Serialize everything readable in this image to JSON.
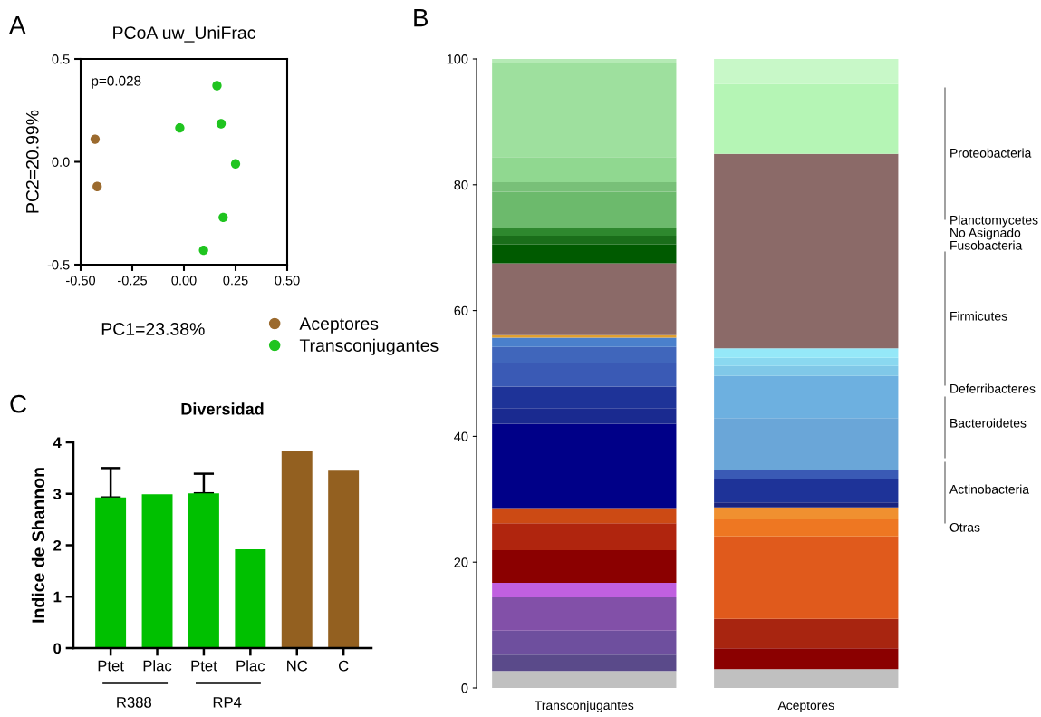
{
  "chart_data": [
    {
      "type": "scatter",
      "title": "PCoA uw_UniFrac",
      "xlabel": "PC1=23.38%",
      "ylabel": "PC2=20.99%",
      "annotations": [
        "A",
        "p=0.028"
      ],
      "marker": "circle",
      "legend": "bottom right",
      "grid": false,
      "xlim": [
        -0.5,
        0.5
      ],
      "xticks": [
        {
          "value": -0.5,
          "label": "-0.50"
        },
        {
          "value": -0.25,
          "label": "-0.25"
        },
        {
          "value": 0,
          "label": "0.00"
        },
        {
          "value": 0.25,
          "label": "0.25"
        },
        {
          "value": 0.5,
          "label": "0.50"
        }
      ],
      "ylim": [
        -0.5,
        0.5
      ],
      "yticks": [
        {
          "value": -0.5,
          "label": "-0.5"
        },
        {
          "value": 0,
          "label": "0.0"
        },
        {
          "value": 0.5,
          "label": "0.5"
        }
      ],
      "series": [
        {
          "name": "Aceptores",
          "color": "#9b6a2e",
          "x": [
            -0.43,
            -0.42
          ],
          "values": [
            0.11,
            -0.12
          ]
        },
        {
          "name": "Transconjugantes",
          "color": "#1fc41f",
          "x": [
            0.16,
            -0.02,
            0.18,
            0.25,
            0.19,
            0.095
          ],
          "values": [
            0.37,
            0.165,
            0.185,
            -0.01,
            -0.27,
            -0.43
          ]
        }
      ]
    },
    {
      "type": "bar",
      "stacked": true,
      "annotations": [
        "B",
        "Proteobacteria",
        "Planctomycetes",
        "No Asignado",
        "Fusobacteria",
        "Firmicutes",
        "Deferribacteres",
        "Bacteroidetes",
        "Actinobacteria",
        "Otras"
      ],
      "categories": [
        "Transconjugantes",
        "Aceptores"
      ],
      "ylim": [
        0,
        100
      ],
      "yticks": [
        0,
        20,
        40,
        60,
        80,
        100
      ],
      "grid": false,
      "series": [
        {
          "values": [
            2.7,
            3.0
          ],
          "colors": [
            "#c0c0c0",
            "#c0c0c0"
          ]
        },
        {
          "values": [
            2.6,
            3.3
          ],
          "colors": [
            "#5a4a8a",
            "#8b0000"
          ]
        },
        {
          "values": [
            3.8,
            4.7
          ],
          "colors": [
            "#6e4f9e",
            "#a82510"
          ]
        },
        {
          "values": [
            5.3,
            13.1
          ],
          "colors": [
            "#8250a8",
            "#e05a1c"
          ]
        },
        {
          "values": [
            2.3,
            2.7
          ],
          "colors": [
            "#c060e0",
            "#ee7722"
          ]
        },
        {
          "values": [
            5.2,
            1.9
          ],
          "colors": [
            "#8b0000",
            "#f09030"
          ]
        },
        {
          "values": [
            4.3,
            0.8
          ],
          "colors": [
            "#b0250e",
            "#1a237e"
          ]
        },
        {
          "values": [
            2.4,
            3.8
          ],
          "colors": [
            "#cc4a14",
            "#1e3398"
          ]
        },
        {
          "values": [
            13.4,
            1.3
          ],
          "colors": [
            "#000088",
            "#3a5ab5"
          ]
        },
        {
          "values": [
            2.5,
            8.3
          ],
          "colors": [
            "#1a2a90",
            "#6aa6d8"
          ]
        },
        {
          "values": [
            3.4,
            6.7
          ],
          "colors": [
            "#1e3398",
            "#6db0e0"
          ]
        },
        {
          "values": [
            3.8,
            1.6
          ],
          "colors": [
            "#3a5ab5",
            "#80c8e8"
          ]
        },
        {
          "values": [
            2.5,
            1.3
          ],
          "colors": [
            "#4066bb",
            "#8ad8f0"
          ]
        },
        {
          "values": [
            1.5,
            1.5
          ],
          "colors": [
            "#4a80cc",
            "#95e8f8"
          ]
        },
        {
          "values": [
            0.4,
            30.9
          ],
          "colors": [
            "#e0a030",
            "#8b6a68"
          ]
        },
        {
          "values": [
            11.4,
            11.1
          ],
          "colors": [
            "#8b6a68",
            "#b5f5b5"
          ]
        },
        {
          "values": [
            3.0,
            4.0
          ],
          "colors": [
            "#005a00",
            "#c8f8c8"
          ]
        },
        {
          "values": [
            1.4,
            null
          ],
          "colors": [
            "#1a6e1a",
            null
          ]
        },
        {
          "values": [
            1.2,
            null
          ],
          "colors": [
            "#2e882e",
            null
          ]
        },
        {
          "values": [
            5.8,
            null
          ],
          "colors": [
            "#6cba6c",
            null
          ]
        },
        {
          "values": [
            1.5,
            null
          ],
          "colors": [
            "#78c078",
            null
          ]
        },
        {
          "values": [
            4.0,
            null
          ],
          "colors": [
            "#90d890",
            null
          ]
        },
        {
          "values": [
            15.0,
            null
          ],
          "colors": [
            "#9ee09e",
            null
          ]
        },
        {
          "values": [
            0.6,
            null
          ],
          "colors": [
            "#b5eab5",
            null
          ]
        }
      ]
    },
    {
      "type": "bar",
      "title": "Diversidad",
      "ylabel": "Indice de Shannon",
      "annotations": [
        "C",
        "R388",
        "RP4"
      ],
      "categories": [
        "Ptet",
        "Plac",
        "Ptet",
        "Plac",
        "NC",
        "C"
      ],
      "values": [
        2.93,
        2.99,
        3.01,
        1.92,
        3.83,
        3.45
      ],
      "colors": [
        "#00c000",
        "#00c000",
        "#00c000",
        "#00c000",
        "#936020",
        "#936020"
      ],
      "errors": [
        [
          2.93,
          3.5
        ],
        null,
        [
          3.01,
          3.39
        ],
        null,
        null,
        null
      ],
      "ylim": [
        0,
        4
      ],
      "yticks": [
        0,
        1,
        2,
        3,
        4
      ],
      "grid": false
    }
  ]
}
